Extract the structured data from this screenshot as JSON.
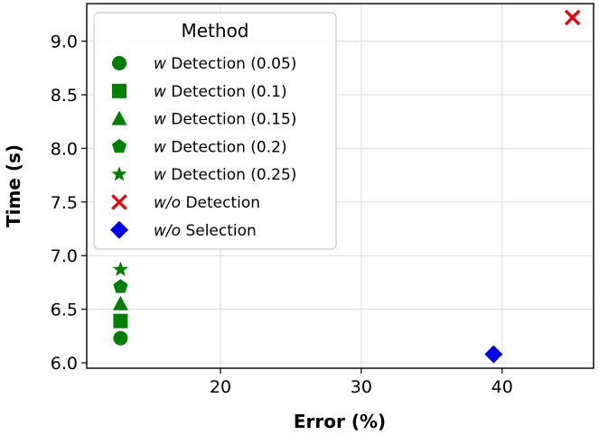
{
  "chart_data": {
    "type": "scatter",
    "title": "",
    "xlabel": "Error (%)",
    "ylabel": "Time (s)",
    "xlim": [
      10.5,
      46.5
    ],
    "ylim": [
      5.95,
      9.35
    ],
    "xticks": [
      20,
      30,
      40
    ],
    "xtick_labels": [
      "20",
      "30",
      "40"
    ],
    "yticks": [
      6.0,
      6.5,
      7.0,
      7.5,
      8.0,
      8.5,
      9.0
    ],
    "ytick_labels": [
      "6.0",
      "6.5",
      "7.0",
      "7.5",
      "8.0",
      "8.5",
      "9.0"
    ],
    "grid": true,
    "legend": {
      "title": "Method",
      "placement": "top-left"
    },
    "series": [
      {
        "name_prefix": "w",
        "name_rest": " Detection (0.05)",
        "marker": "circle",
        "color": "#008000",
        "points": [
          {
            "x": 12.9,
            "y": 6.23
          }
        ]
      },
      {
        "name_prefix": "w",
        "name_rest": " Detection (0.1)",
        "marker": "square",
        "color": "#008000",
        "points": [
          {
            "x": 12.9,
            "y": 6.39
          }
        ]
      },
      {
        "name_prefix": "w",
        "name_rest": " Detection (0.15)",
        "marker": "triangle",
        "color": "#008000",
        "points": [
          {
            "x": 12.9,
            "y": 6.55
          }
        ]
      },
      {
        "name_prefix": "w",
        "name_rest": " Detection (0.2)",
        "marker": "pentagon",
        "color": "#008000",
        "points": [
          {
            "x": 12.9,
            "y": 6.71
          }
        ]
      },
      {
        "name_prefix": "w",
        "name_rest": " Detection (0.25)",
        "marker": "star",
        "color": "#008000",
        "points": [
          {
            "x": 12.9,
            "y": 6.87
          }
        ]
      },
      {
        "name_prefix": "w/o",
        "name_rest": " Detection",
        "marker": "x",
        "color": "#ee0000",
        "points": [
          {
            "x": 45.0,
            "y": 9.22
          }
        ]
      },
      {
        "name_prefix": "w/o",
        "name_rest": " Selection",
        "marker": "diamond",
        "color": "#0000ee",
        "points": [
          {
            "x": 39.4,
            "y": 6.08
          }
        ]
      }
    ]
  }
}
